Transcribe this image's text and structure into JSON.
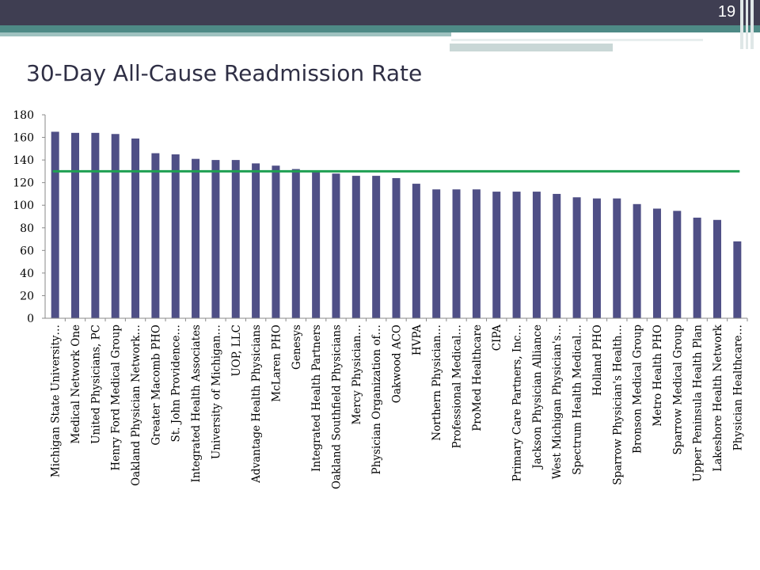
{
  "slide": {
    "page_number": "19",
    "title": "30-Day All-Cause Readmission Rate"
  },
  "colors": {
    "bar": "#4f4f86",
    "benchmark_line": "#1fa053",
    "header_dark": "#3f3e52",
    "header_teal": "#4e8a86"
  },
  "chart_data": {
    "type": "bar",
    "title": "",
    "xlabel": "",
    "ylabel": "",
    "ylim": [
      0,
      180
    ],
    "yticks": [
      0,
      20,
      40,
      60,
      80,
      100,
      120,
      140,
      160,
      180
    ],
    "legend": "none",
    "categories": [
      "Michigan State University…",
      "Medical Network One",
      "United Physicians, PC",
      "Henry Ford Medical Group",
      "Oakland Physician Network…",
      "Greater Macomb PHO",
      "St. John Providence…",
      "Integrated Health Associates",
      "University of Michigan…",
      "UOP, LLC",
      "Advantage Health Physicians",
      "McLaren PHO",
      "Genesys",
      "Integrated Health Partners",
      "Oakland Southfield Physicians",
      "Mercy Physician…",
      "Physician Organization of…",
      "Oakwood ACO",
      "HVPA",
      "Northern Physician…",
      "Professional Medical…",
      "ProMed Healthcare",
      "CIPA",
      "Primary Care Partners, Inc…",
      "Jackson Physician Alliance",
      "West Michigan Physician's…",
      "Spectrum Health Medical…",
      "Holland PHO",
      "Sparrow Physician's Health…",
      "Bronson Medical Group",
      "Metro Health PHO",
      "Sparrow Medical Group",
      "Upper Peninsula Health Plan",
      "Lakeshore Health Network",
      "Physician Healthcare…"
    ],
    "values": [
      165,
      164,
      164,
      163,
      159,
      146,
      145,
      141,
      140,
      140,
      137,
      135,
      132,
      130,
      128,
      126,
      126,
      124,
      119,
      114,
      114,
      114,
      112,
      112,
      112,
      110,
      107,
      106,
      106,
      101,
      97,
      95,
      89,
      87,
      68
    ],
    "reference_line": {
      "value": 130
    }
  }
}
